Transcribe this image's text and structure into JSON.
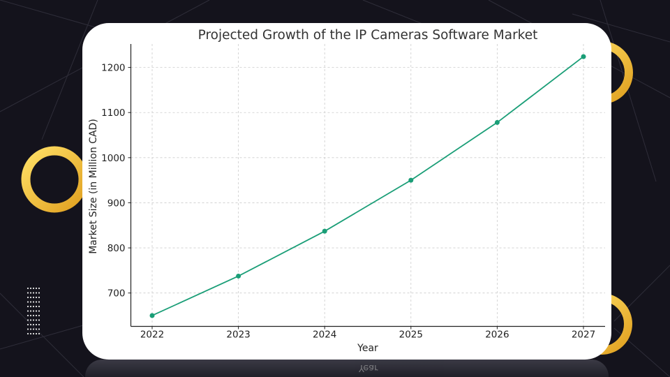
{
  "chart_data": {
    "type": "line",
    "title": "Projected Growth of the IP Cameras Software Market",
    "xlabel": "Year",
    "ylabel": "Market Size (in Million CAD)",
    "x": [
      "2022",
      "2023",
      "2024",
      "2025",
      "2026",
      "2027"
    ],
    "series": [
      {
        "name": "Market Size",
        "values": [
          650,
          737.5,
          837,
          950,
          1078,
          1224
        ]
      }
    ],
    "yticks": [
      700,
      800,
      900,
      1000,
      1100,
      1200
    ],
    "ylim": [
      626,
      1252
    ],
    "grid": true,
    "line_color": "#1a9e77"
  },
  "reflection_text": "Year",
  "colors": {
    "background": "#14131c",
    "accent": "#f5c23a",
    "card": "#ffffff"
  }
}
